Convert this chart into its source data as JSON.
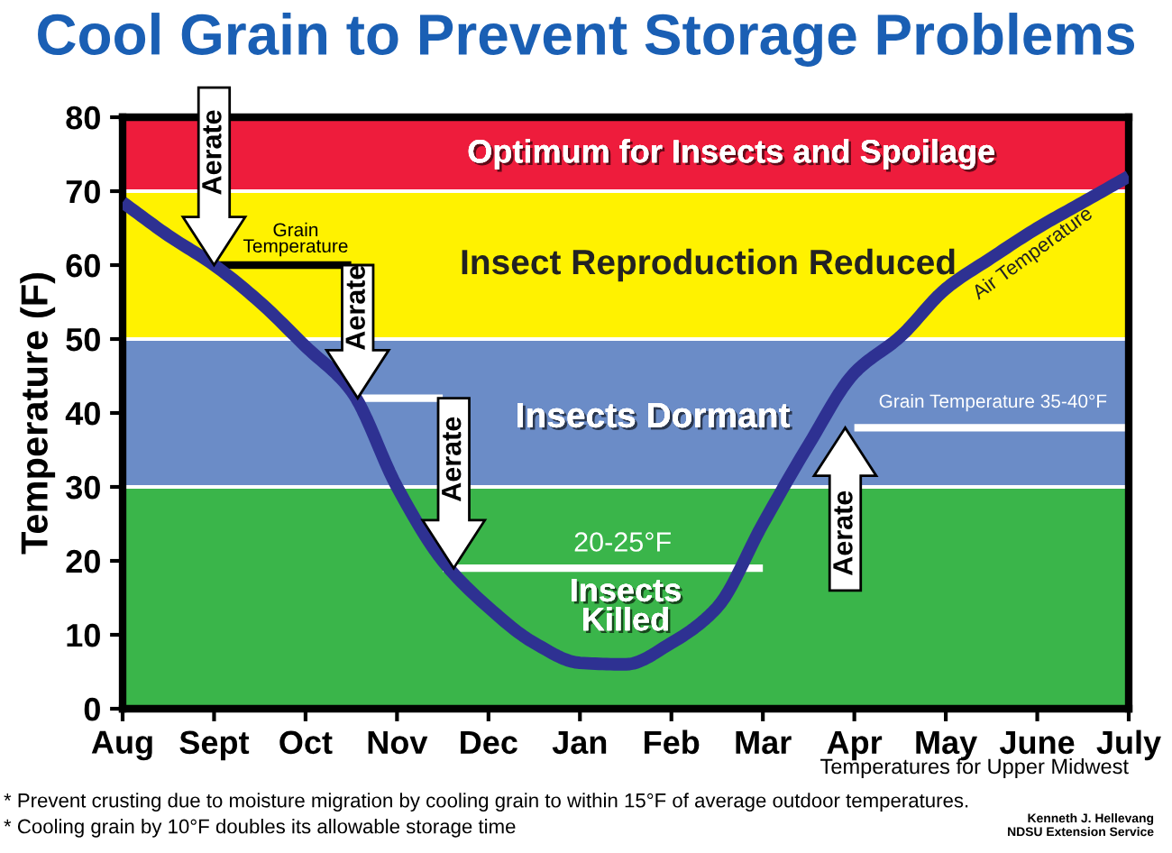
{
  "chart_data": {
    "type": "line",
    "title": "Cool Grain to Prevent Storage Problems",
    "ylabel": "Temperature (F)",
    "categories": [
      "Aug",
      null,
      "Sept",
      null,
      "Oct",
      null,
      "Nov",
      null,
      "Dec",
      null,
      "Jan",
      null,
      "Feb",
      null,
      "Mar",
      null,
      "Apr",
      null,
      "May",
      null,
      "June",
      null,
      "July"
    ],
    "ylim": [
      0,
      80
    ],
    "yticks": [
      0,
      10,
      20,
      30,
      40,
      50,
      60,
      70,
      80
    ],
    "grid": false,
    "legend": false,
    "marker": "none",
    "line_style": "solid",
    "bands": [
      {
        "axis": "y",
        "from": 70,
        "to": 80,
        "label": "Optimum for Insects and Spoilage",
        "color": "#ee1c3c"
      },
      {
        "axis": "y",
        "from": 50,
        "to": 70,
        "label": "Insect Reproduction Reduced",
        "color": "#fff200"
      },
      {
        "axis": "y",
        "from": 30,
        "to": 50,
        "label": "Insects Dormant",
        "color": "#6b8cc7"
      },
      {
        "axis": "y",
        "from": 0,
        "to": 30,
        "label": "Insects Killed",
        "color": "#3ab54a"
      }
    ],
    "series": [
      {
        "name": "Air Temperature",
        "color": "#2e3192",
        "values": [
          68.5,
          64,
          60,
          55,
          49,
          43,
          30,
          20,
          13.7,
          8.9,
          6.2,
          6,
          8.9,
          13.7,
          25,
          35.7,
          45.4,
          50.3,
          56.8,
          61,
          65,
          68.5,
          72
        ]
      },
      {
        "color": "#000000",
        "values": [
          null,
          null,
          60,
          60,
          60,
          60,
          null,
          null,
          null,
          null,
          null,
          null,
          null,
          null,
          null,
          null,
          null,
          null,
          null,
          null,
          null,
          null,
          null
        ]
      },
      {
        "color": "#ffffff",
        "values": [
          null,
          null,
          null,
          null,
          null,
          42,
          42,
          42,
          null,
          null,
          null,
          null,
          null,
          null,
          null,
          null,
          null,
          null,
          null,
          null,
          null,
          null,
          null
        ]
      },
      {
        "color": "#ffffff",
        "values": [
          null,
          null,
          null,
          null,
          null,
          null,
          null,
          19,
          19,
          19,
          19,
          19,
          19,
          19,
          19,
          null,
          null,
          null,
          null,
          null,
          null,
          null,
          null
        ]
      },
      {
        "color": "#ffffff",
        "values": [
          null,
          null,
          null,
          null,
          null,
          null,
          null,
          null,
          null,
          null,
          null,
          null,
          null,
          null,
          null,
          null,
          38,
          38,
          38,
          38,
          38,
          38,
          38
        ]
      }
    ],
    "annotations": [
      {
        "text": "Aerate",
        "x": "Sept",
        "y": 60
      },
      "Aerate",
      "Aerate",
      "Aerate",
      "Grain\nTemperature",
      "20-25°F",
      "Grain Temperature 35-40°F",
      "Temperatures for Upper Midwest",
      "* Prevent crusting due to moisture migration by cooling grain to within 15°F of average outdoor temperatures.\n* Cooling grain by 10°F doubles its allowable storage time",
      "Kenneth J. Hellevang\nNDSU Extension Service"
    ]
  }
}
